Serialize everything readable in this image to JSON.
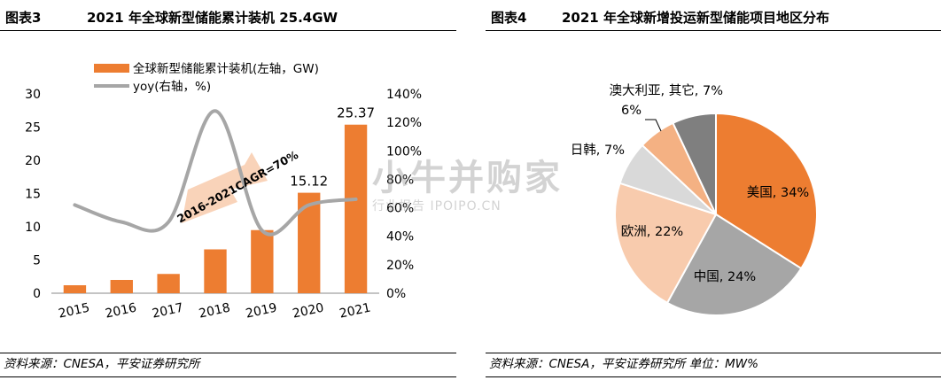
{
  "left": {
    "fig_no": "图表3",
    "title": "2021 年全球新型储能累计装机 25.4GW",
    "source": "资料来源：CNESA，平安证券研究所"
  },
  "right": {
    "fig_no": "图表4",
    "title": "2021  年全球新增投运新型储能项目地区分布",
    "source": "资料来源：CNESA，平安证券研究所  单位：MW%"
  },
  "watermark": {
    "main": "小牛并购家",
    "sub": "行业报告 IPOIPO.CN"
  },
  "colors": {
    "bar": "#ED7D31",
    "line": "#A6A6A6"
  },
  "chart_data": [
    {
      "type": "bar",
      "categories": [
        "2015",
        "2016",
        "2017",
        "2018",
        "2019",
        "2020",
        "2021"
      ],
      "series": [
        {
          "name": "全球新型储能累计装机(左轴，GW)",
          "axis": "left",
          "kind": "bar",
          "values": [
            1.2,
            2.0,
            2.9,
            6.6,
            9.5,
            15.12,
            25.37
          ]
        },
        {
          "name": "yoy(右轴，%)",
          "axis": "right",
          "kind": "line",
          "values": [
            62,
            50,
            50,
            128,
            44,
            62,
            66
          ]
        }
      ],
      "data_labels": [
        {
          "index": 5,
          "text": "15.12"
        },
        {
          "index": 6,
          "text": "25.37"
        }
      ],
      "annotation": "2016-2021CAGR=70%",
      "left_axis": {
        "min": 0,
        "max": 30,
        "ticks": [
          "0",
          "5",
          "10",
          "15",
          "20",
          "25",
          "30"
        ]
      },
      "right_axis": {
        "min": 0,
        "max": 140,
        "ticks": [
          "0%",
          "20%",
          "40%",
          "60%",
          "80%",
          "100%",
          "120%",
          "140%"
        ]
      },
      "grid": false,
      "legend": "top"
    },
    {
      "type": "pie",
      "slices": [
        {
          "label": "美国, 34%",
          "value": 34,
          "color": "#ED7D31"
        },
        {
          "label": "中国, 24%",
          "value": 24,
          "color": "#A6A6A6"
        },
        {
          "label": "欧洲, 22%",
          "value": 22,
          "color": "#F8CBAD"
        },
        {
          "label": "日韩, 7%",
          "value": 7,
          "color": "#D9D9D9"
        },
        {
          "label": "6%",
          "value": 6,
          "color": "#F4B183"
        },
        {
          "label": "澳大利亚, 其它, 7%",
          "value": 7,
          "color": "#7F7F7F"
        }
      ]
    }
  ]
}
